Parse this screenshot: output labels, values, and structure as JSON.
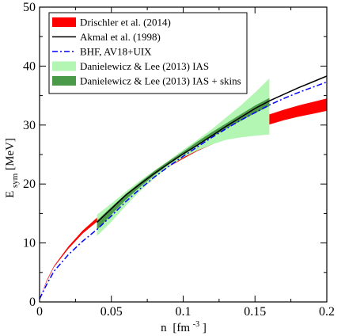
{
  "chart_data": {
    "type": "line",
    "title": "",
    "xlabel": {
      "main": "n",
      "unit": "[fm",
      "exponent": "-3",
      "close": "]"
    },
    "ylabel": {
      "main": "E",
      "subscript": "sym",
      "unit": " [MeV]"
    },
    "xlim": [
      0,
      0.2
    ],
    "ylim": [
      0,
      50
    ],
    "x_ticks": [
      {
        "value": 0,
        "label": "0"
      },
      {
        "value": 0.05,
        "label": "0.05"
      },
      {
        "value": 0.1,
        "label": "0.1"
      },
      {
        "value": 0.15,
        "label": "0.15"
      },
      {
        "value": 0.2,
        "label": "0.2"
      }
    ],
    "y_ticks": [
      {
        "value": 0,
        "label": "0"
      },
      {
        "value": 10,
        "label": "10"
      },
      {
        "value": 20,
        "label": "20"
      },
      {
        "value": 30,
        "label": "30"
      },
      {
        "value": 40,
        "label": "40"
      },
      {
        "value": 50,
        "label": "50"
      }
    ],
    "legend_position": "top-left",
    "series": [
      {
        "name": "Drischler et al. (2014)",
        "kind": "band",
        "color": "#ff0000",
        "x": [
          0.0,
          0.005,
          0.01,
          0.02,
          0.03,
          0.04,
          0.05,
          0.06,
          0.07,
          0.08,
          0.09,
          0.1,
          0.11,
          0.12,
          0.13,
          0.14,
          0.15,
          0.16,
          0.17,
          0.18,
          0.19,
          0.2
        ],
        "lower": [
          0.6,
          3.5,
          5.9,
          9.0,
          11.6,
          13.6,
          15.6,
          17.7,
          19.6,
          21.3,
          22.9,
          24.3,
          25.6,
          26.7,
          27.7,
          28.6,
          29.4,
          30.1,
          30.8,
          31.4,
          31.9,
          32.4
        ],
        "upper": [
          0.6,
          3.7,
          6.1,
          9.4,
          12.1,
          14.3,
          16.3,
          18.3,
          20.1,
          21.8,
          23.4,
          24.8,
          26.3,
          27.6,
          28.8,
          29.9,
          30.9,
          31.8,
          32.6,
          33.3,
          33.9,
          34.5
        ]
      },
      {
        "name": "Akmal et al. (1998)",
        "kind": "line",
        "color": "#000000",
        "dash": "",
        "x": [
          0.04,
          0.05,
          0.06,
          0.07,
          0.08,
          0.09,
          0.1,
          0.11,
          0.12,
          0.13,
          0.14,
          0.15,
          0.16,
          0.17,
          0.18,
          0.19,
          0.2
        ],
        "y": [
          13.5,
          15.8,
          18.1,
          20.0,
          21.8,
          23.5,
          25.1,
          26.6,
          28.2,
          29.8,
          31.3,
          32.8,
          34.1,
          35.2,
          36.3,
          37.3,
          38.3
        ]
      },
      {
        "name": "BHF, AV18+UIX",
        "kind": "line",
        "color": "#0000ff",
        "dash": "7,3,2,3",
        "x": [
          0.0,
          0.005,
          0.01,
          0.02,
          0.03,
          0.04,
          0.05,
          0.06,
          0.07,
          0.08,
          0.09,
          0.1,
          0.11,
          0.12,
          0.13,
          0.14,
          0.15,
          0.16,
          0.17,
          0.18,
          0.19,
          0.2
        ],
        "y": [
          0.5,
          3.0,
          5.2,
          8.0,
          10.3,
          12.3,
          14.6,
          17.0,
          19.2,
          21.2,
          23.0,
          24.7,
          26.3,
          27.9,
          29.4,
          30.8,
          32.1,
          33.4,
          34.5,
          35.5,
          36.4,
          37.3
        ]
      },
      {
        "name": "Danielewicz & Lee (2013) IAS",
        "kind": "band",
        "color": "#b3f5b3",
        "x": [
          0.04,
          0.05,
          0.06,
          0.07,
          0.08,
          0.09,
          0.1,
          0.11,
          0.12,
          0.13,
          0.14,
          0.15,
          0.16
        ],
        "lower": [
          11.2,
          13.6,
          16.3,
          18.8,
          21.0,
          22.9,
          24.5,
          25.7,
          26.7,
          27.5,
          27.9,
          28.2,
          28.4
        ],
        "upper": [
          14.8,
          16.7,
          18.7,
          20.6,
          22.3,
          24.0,
          25.8,
          27.5,
          29.3,
          31.3,
          33.3,
          35.5,
          37.9
        ]
      },
      {
        "name": "Danielewicz & Lee (2013) IAS + skins",
        "kind": "band",
        "color": "#4a9a4a",
        "x": [
          0.04,
          0.05,
          0.06,
          0.07,
          0.08,
          0.09,
          0.1,
          0.11,
          0.12,
          0.13,
          0.14,
          0.15,
          0.16
        ],
        "lower": [
          12.2,
          14.8,
          17.3,
          19.5,
          21.5,
          23.3,
          25.0,
          26.6,
          28.0,
          29.4,
          30.7,
          32.0,
          33.2
        ],
        "upper": [
          13.8,
          16.1,
          18.3,
          20.3,
          22.2,
          23.9,
          25.5,
          27.2,
          28.8,
          30.3,
          31.8,
          33.3,
          34.6
        ]
      }
    ],
    "legend": [
      {
        "label": "Drischler et al. (2014)",
        "kind": "band",
        "color": "#ff0000"
      },
      {
        "label": "Akmal et al. (1998)",
        "kind": "line",
        "color": "#000000",
        "dash": ""
      },
      {
        "label": "BHF, AV18+UIX",
        "kind": "line",
        "color": "#0000ff",
        "dash": "7,3,2,3"
      },
      {
        "label": "Danielewicz & Lee (2013) IAS",
        "kind": "band",
        "color": "#b3f5b3"
      },
      {
        "label": "Danielewicz & Lee (2013) IAS + skins",
        "kind": "band",
        "color": "#4a9a4a"
      }
    ]
  }
}
